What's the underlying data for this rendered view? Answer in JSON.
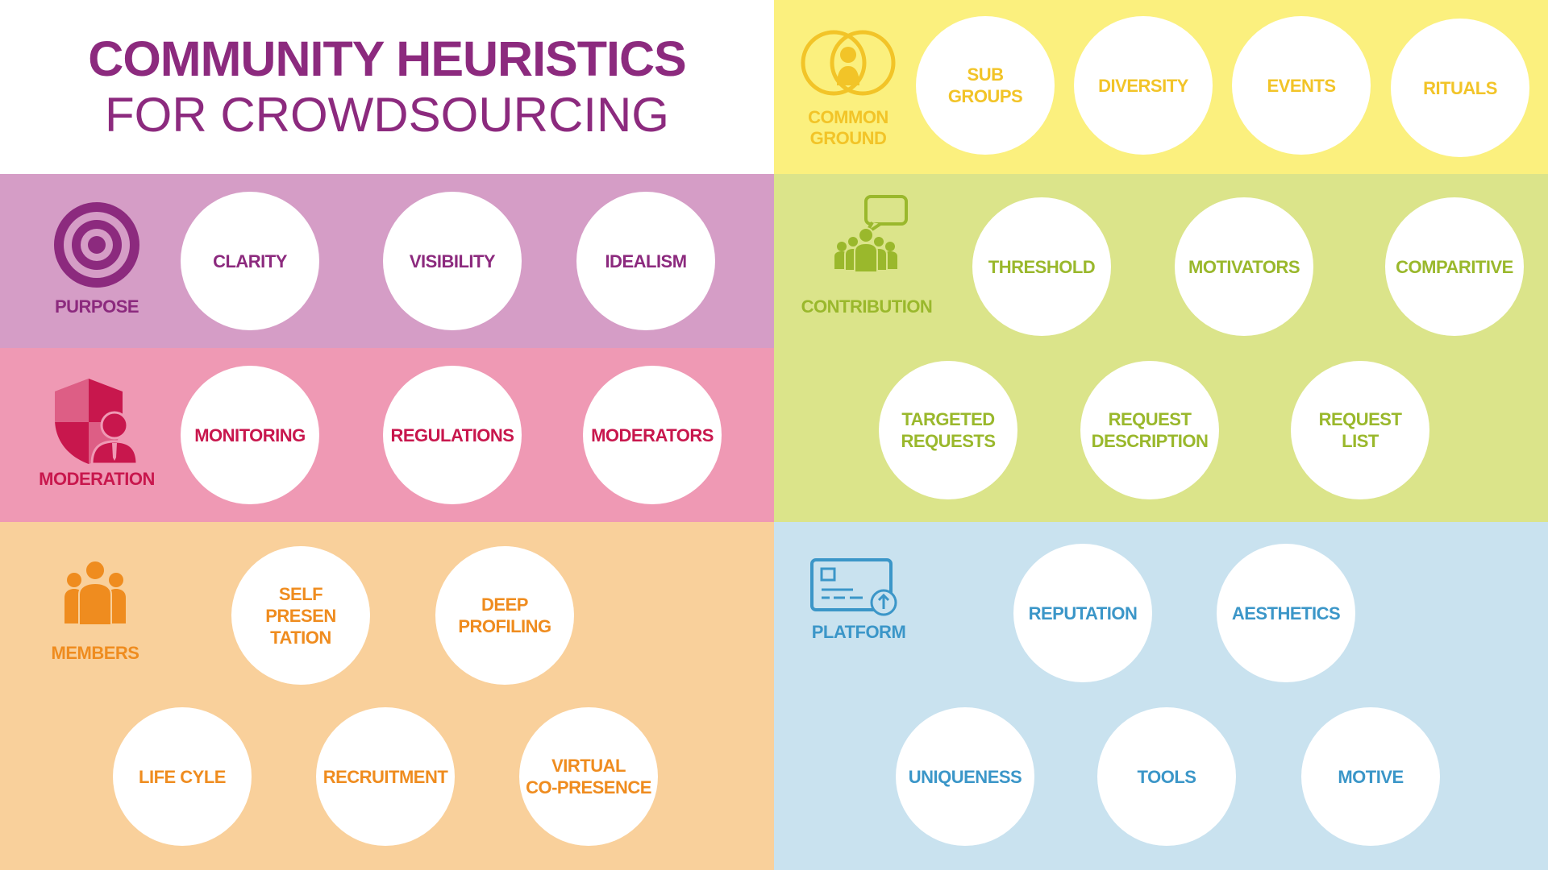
{
  "title": {
    "line1": "COMMUNITY HEURISTICS",
    "line2": "FOR CROWDSOURCING"
  },
  "colors": {
    "title": "#8c2a7e",
    "purpose_bg": "#d59dc6",
    "purpose_fg": "#8c2a7e",
    "moderation_bg": "#ef99b4",
    "moderation_fg": "#c8174d",
    "members_bg": "#f9d09b",
    "members_fg": "#ef8c1f",
    "common_bg": "#fbf07e",
    "common_fg": "#f2c428",
    "contribution_bg": "#dbe48a",
    "contribution_fg": "#9ab82c",
    "platform_bg": "#c9e2ef",
    "platform_fg": "#3b96c8"
  },
  "sections": {
    "purpose": {
      "label": "PURPOSE",
      "icon": "target-icon",
      "items": [
        "CLARITY",
        "VISIBILITY",
        "IDEALISM"
      ]
    },
    "moderation": {
      "label": "MODERATION",
      "icon": "shield-person-icon",
      "items": [
        "MONITORING",
        "REGULATIONS",
        "MODERATORS"
      ]
    },
    "members": {
      "label": "MEMBERS",
      "icon": "people-group-icon",
      "items": [
        "SELF\nPRESEN\nTATION",
        "DEEP\nPROFILING",
        "LIFE CYLE",
        "RECRUITMENT",
        "VIRTUAL\nCO-PRESENCE"
      ]
    },
    "common_ground": {
      "label": "COMMON\nGROUND",
      "icon": "overlapping-circles-person-icon",
      "items": [
        "SUB\nGROUPS",
        "DIVERSITY",
        "EVENTS",
        "RITUALS"
      ]
    },
    "contribution": {
      "label": "CONTRIBUTION",
      "icon": "people-speech-bubble-icon",
      "items": [
        "THRESHOLD",
        "MOTIVATORS",
        "COMPARITIVE",
        "TARGETED\nREQUESTS",
        "REQUEST\nDESCRIPTION",
        "REQUEST\nLIST"
      ]
    },
    "platform": {
      "label": "PLATFORM",
      "icon": "id-card-upload-icon",
      "items": [
        "REPUTATION",
        "AESTHETICS",
        "UNIQUENESS",
        "TOOLS",
        "MOTIVE"
      ]
    }
  }
}
